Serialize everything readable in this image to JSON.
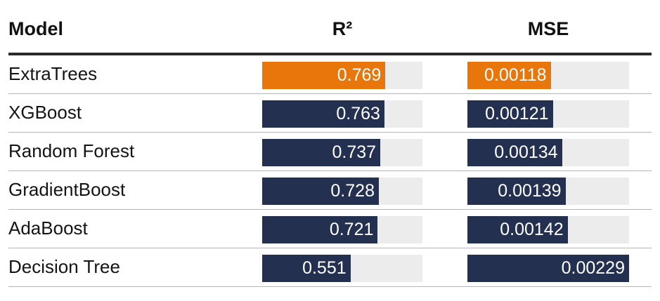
{
  "headers": {
    "model": "Model",
    "r2": "R²",
    "mse": "MSE"
  },
  "colors": {
    "highlight": "#e8760a",
    "bar": "#24304f",
    "track": "#ececec"
  },
  "chart_data": {
    "type": "table",
    "columns": [
      "Model",
      "R²",
      "MSE"
    ],
    "r2_max": 1.0,
    "mse_max": 0.00229,
    "rows": [
      {
        "model": "ExtraTrees",
        "r2": 0.769,
        "r2_label": "0.769",
        "mse": 0.00118,
        "mse_label": "0.00118",
        "highlight": true
      },
      {
        "model": "XGBoost",
        "r2": 0.763,
        "r2_label": "0.763",
        "mse": 0.00121,
        "mse_label": "0.00121",
        "highlight": false
      },
      {
        "model": "Random Forest",
        "r2": 0.737,
        "r2_label": "0.737",
        "mse": 0.00134,
        "mse_label": "0.00134",
        "highlight": false
      },
      {
        "model": "GradientBoost",
        "r2": 0.728,
        "r2_label": "0.728",
        "mse": 0.00139,
        "mse_label": "0.00139",
        "highlight": false
      },
      {
        "model": "AdaBoost",
        "r2": 0.721,
        "r2_label": "0.721",
        "mse": 0.00142,
        "mse_label": "0.00142",
        "highlight": false
      },
      {
        "model": "Decision Tree",
        "r2": 0.551,
        "r2_label": "0.551",
        "mse": 0.00229,
        "mse_label": "0.00229",
        "highlight": false
      }
    ]
  }
}
